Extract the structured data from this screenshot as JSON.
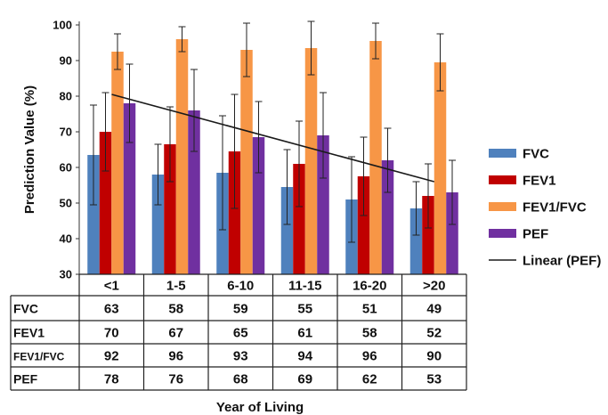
{
  "chart_data": {
    "type": "bar",
    "ylabel": "Prediction Value (%)",
    "xlabel": "Year of Living",
    "ylim": [
      30,
      100
    ],
    "yticks": [
      30,
      40,
      50,
      60,
      70,
      80,
      90,
      100
    ],
    "categories": [
      "<1",
      "1-5",
      "6-10",
      "11-15",
      "16-20",
      ">20"
    ],
    "series": [
      {
        "name": "FVC",
        "color": "#4f81bd",
        "values": [
          63.5,
          58,
          58.5,
          54.5,
          51,
          48.5
        ],
        "err": [
          14,
          8.5,
          16,
          10.5,
          12,
          7.5
        ],
        "table": [
          "63",
          "58",
          "59",
          "55",
          "51",
          "49"
        ]
      },
      {
        "name": "FEV1",
        "color": "#c00000",
        "values": [
          70,
          66.5,
          64.5,
          61,
          57.5,
          52
        ],
        "err": [
          11,
          10.5,
          16,
          12,
          11,
          9
        ],
        "table": [
          "70",
          "67",
          "65",
          "61",
          "58",
          "52"
        ]
      },
      {
        "name": "FEV1/FVC",
        "color": "#f79646",
        "values": [
          92.5,
          96,
          93,
          93.5,
          95.5,
          89.5
        ],
        "err": [
          5,
          3.5,
          7.5,
          7.5,
          5,
          8
        ],
        "table": [
          "92",
          "96",
          "93",
          "94",
          "96",
          "90"
        ]
      },
      {
        "name": "PEF",
        "color": "#7030a0",
        "values": [
          78,
          76,
          68.5,
          69,
          62,
          53
        ],
        "err": [
          11,
          11.5,
          10,
          12,
          9,
          9
        ],
        "table": [
          "78",
          "76",
          "68",
          "69",
          "62",
          "53"
        ]
      }
    ],
    "trendline": {
      "name": "Linear (PEF)",
      "color": "#1a1a1a",
      "values": [
        80.5,
        75.8,
        71.1,
        66.4,
        61.7,
        56.0
      ]
    },
    "grid": false,
    "legend_position": "right",
    "data_table": true
  }
}
